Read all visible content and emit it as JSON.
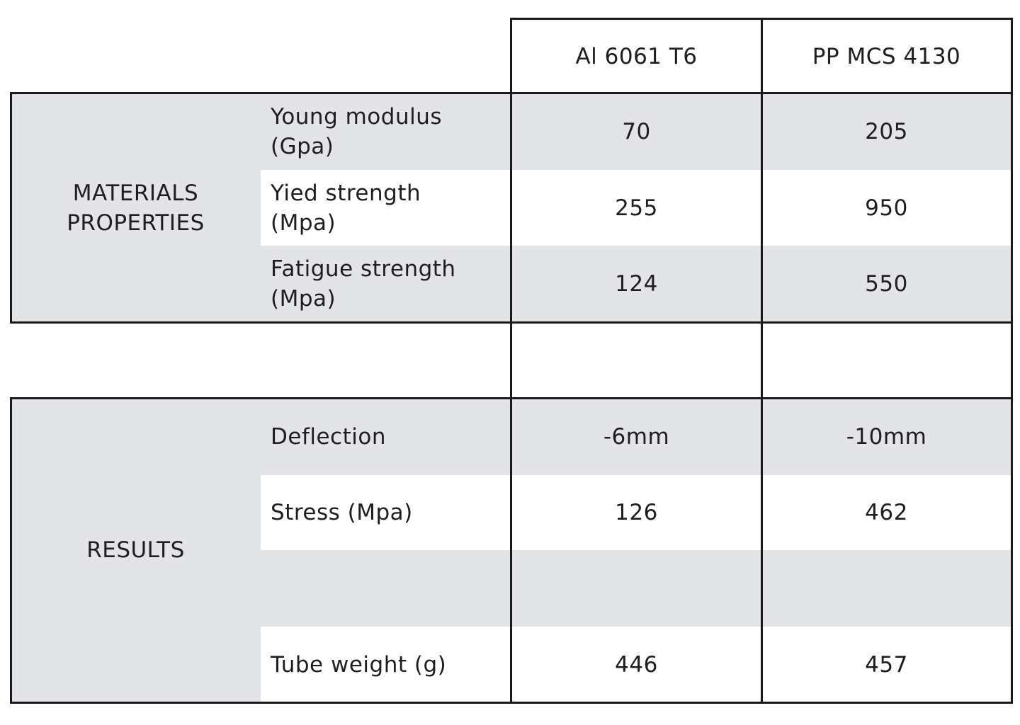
{
  "table": {
    "columns": [
      "Al 6061 T6",
      "PP MCS 4130"
    ],
    "groups": {
      "materials": {
        "label": "MATERIALS\nPROPERTIES",
        "rows": [
          {
            "property": "Young modulus\n(Gpa)",
            "values": [
              "70",
              "205"
            ]
          },
          {
            "property": "Yied strength\n(Mpa)",
            "values": [
              "255",
              "950"
            ]
          },
          {
            "property": "Fatigue strength\n(Mpa)",
            "values": [
              "124",
              "550"
            ]
          }
        ]
      },
      "results": {
        "label": "RESULTS",
        "rows": [
          {
            "property": "Deflection",
            "values": [
              "-6mm",
              "-10mm"
            ]
          },
          {
            "property": "Stress (Mpa)",
            "values": [
              "126",
              "462"
            ]
          },
          {
            "property": "",
            "values": [
              "",
              ""
            ]
          },
          {
            "property": "Tube weight (g)",
            "values": [
              "446",
              "457"
            ]
          }
        ]
      }
    }
  }
}
